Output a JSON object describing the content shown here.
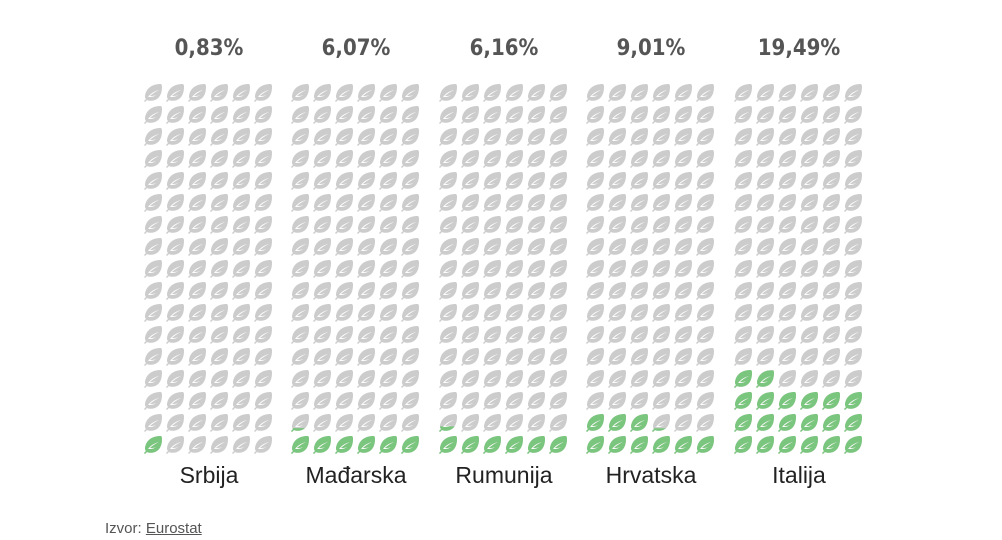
{
  "chart_data": {
    "type": "pictogram",
    "icon": "leaf-icon",
    "icons_per_column": 102,
    "columns_per_grid": 6,
    "rows_per_grid": 17,
    "colors": {
      "filled": "#7bc67e",
      "empty": "#cccccc"
    },
    "categories": [
      "Srbija",
      "Mađarska",
      "Rumunija",
      "Hrvatska",
      "Italija"
    ],
    "values": [
      0.83,
      6.07,
      6.16,
      9.01,
      19.49
    ],
    "value_labels": [
      "0,83%",
      "6,07%",
      "6,16%",
      "9,01%",
      "19,49%"
    ]
  },
  "source": {
    "label": "Izvor:",
    "link": "Eurostat"
  }
}
